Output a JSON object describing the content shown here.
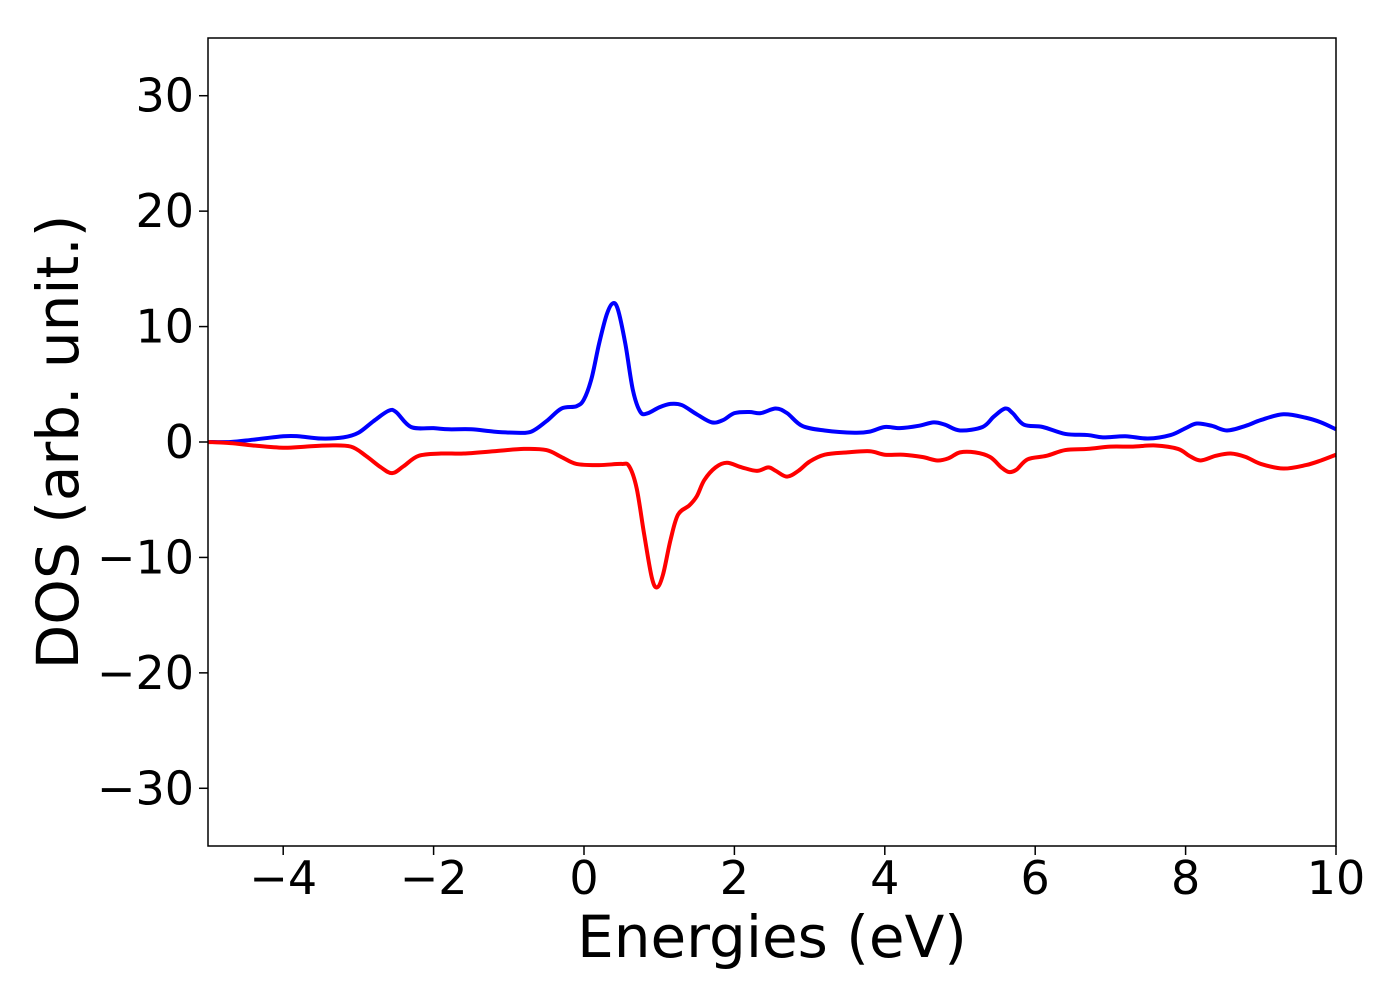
{
  "chart_data": {
    "type": "line",
    "title": "",
    "xlabel": "Energies (eV)",
    "ylabel": "DOS (arb. unit.)",
    "xlim": [
      -5,
      10
    ],
    "ylim": [
      -35,
      35
    ],
    "grid": false,
    "legend": "none",
    "x_ticks": [
      {
        "value": -4,
        "label": "−4"
      },
      {
        "value": -2,
        "label": "−2"
      },
      {
        "value": 0,
        "label": "0"
      },
      {
        "value": 2,
        "label": "2"
      },
      {
        "value": 4,
        "label": "4"
      },
      {
        "value": 6,
        "label": "6"
      },
      {
        "value": 8,
        "label": "8"
      },
      {
        "value": 10,
        "label": "10"
      }
    ],
    "y_ticks": [
      {
        "value": -30,
        "label": "−30"
      },
      {
        "value": -20,
        "label": "−20"
      },
      {
        "value": -10,
        "label": "−10"
      },
      {
        "value": 0,
        "label": "0"
      },
      {
        "value": 10,
        "label": "10"
      },
      {
        "value": 20,
        "label": "20"
      },
      {
        "value": 30,
        "label": "30"
      }
    ],
    "series": [
      {
        "color": "#0000ff",
        "points": [
          [
            -5.0,
            0.0
          ],
          [
            -4.7,
            0.0
          ],
          [
            -4.4,
            0.2
          ],
          [
            -4.0,
            0.5
          ],
          [
            -3.8,
            0.5
          ],
          [
            -3.5,
            0.3
          ],
          [
            -3.2,
            0.4
          ],
          [
            -3.0,
            0.8
          ],
          [
            -2.8,
            1.8
          ],
          [
            -2.6,
            2.7
          ],
          [
            -2.5,
            2.6
          ],
          [
            -2.3,
            1.3
          ],
          [
            -2.0,
            1.2
          ],
          [
            -1.8,
            1.1
          ],
          [
            -1.5,
            1.1
          ],
          [
            -1.2,
            0.9
          ],
          [
            -0.9,
            0.8
          ],
          [
            -0.7,
            0.9
          ],
          [
            -0.5,
            1.8
          ],
          [
            -0.3,
            2.9
          ],
          [
            -0.1,
            3.1
          ],
          [
            0.0,
            3.7
          ],
          [
            0.1,
            5.5
          ],
          [
            0.2,
            8.5
          ],
          [
            0.3,
            11.0
          ],
          [
            0.38,
            12.0
          ],
          [
            0.45,
            11.5
          ],
          [
            0.55,
            8.5
          ],
          [
            0.65,
            4.5
          ],
          [
            0.75,
            2.6
          ],
          [
            0.85,
            2.5
          ],
          [
            1.0,
            3.0
          ],
          [
            1.15,
            3.3
          ],
          [
            1.3,
            3.2
          ],
          [
            1.5,
            2.4
          ],
          [
            1.7,
            1.7
          ],
          [
            1.85,
            1.9
          ],
          [
            2.0,
            2.5
          ],
          [
            2.2,
            2.6
          ],
          [
            2.35,
            2.5
          ],
          [
            2.55,
            2.9
          ],
          [
            2.7,
            2.5
          ],
          [
            2.9,
            1.4
          ],
          [
            3.2,
            1.0
          ],
          [
            3.6,
            0.8
          ],
          [
            3.8,
            0.9
          ],
          [
            4.0,
            1.3
          ],
          [
            4.2,
            1.2
          ],
          [
            4.45,
            1.4
          ],
          [
            4.65,
            1.7
          ],
          [
            4.8,
            1.5
          ],
          [
            5.0,
            1.0
          ],
          [
            5.3,
            1.3
          ],
          [
            5.45,
            2.2
          ],
          [
            5.6,
            2.9
          ],
          [
            5.7,
            2.5
          ],
          [
            5.85,
            1.5
          ],
          [
            6.1,
            1.3
          ],
          [
            6.4,
            0.7
          ],
          [
            6.7,
            0.6
          ],
          [
            6.9,
            0.4
          ],
          [
            7.2,
            0.5
          ],
          [
            7.5,
            0.3
          ],
          [
            7.8,
            0.6
          ],
          [
            8.0,
            1.2
          ],
          [
            8.15,
            1.6
          ],
          [
            8.35,
            1.4
          ],
          [
            8.55,
            1.0
          ],
          [
            8.8,
            1.4
          ],
          [
            9.0,
            1.9
          ],
          [
            9.3,
            2.4
          ],
          [
            9.6,
            2.1
          ],
          [
            9.8,
            1.7
          ],
          [
            10.0,
            1.1
          ]
        ]
      },
      {
        "color": "#ff0000",
        "points": [
          [
            -5.0,
            0.0
          ],
          [
            -4.7,
            -0.1
          ],
          [
            -4.4,
            -0.3
          ],
          [
            -4.0,
            -0.5
          ],
          [
            -3.7,
            -0.4
          ],
          [
            -3.4,
            -0.3
          ],
          [
            -3.1,
            -0.4
          ],
          [
            -2.9,
            -1.2
          ],
          [
            -2.7,
            -2.2
          ],
          [
            -2.55,
            -2.7
          ],
          [
            -2.4,
            -2.1
          ],
          [
            -2.2,
            -1.2
          ],
          [
            -1.9,
            -1.0
          ],
          [
            -1.6,
            -1.0
          ],
          [
            -1.2,
            -0.8
          ],
          [
            -0.8,
            -0.6
          ],
          [
            -0.5,
            -0.7
          ],
          [
            -0.3,
            -1.3
          ],
          [
            -0.1,
            -1.9
          ],
          [
            0.2,
            -2.0
          ],
          [
            0.5,
            -1.9
          ],
          [
            0.6,
            -2.1
          ],
          [
            0.7,
            -4.0
          ],
          [
            0.8,
            -8.0
          ],
          [
            0.9,
            -11.7
          ],
          [
            0.97,
            -12.6
          ],
          [
            1.05,
            -11.5
          ],
          [
            1.15,
            -8.5
          ],
          [
            1.25,
            -6.3
          ],
          [
            1.4,
            -5.5
          ],
          [
            1.5,
            -4.7
          ],
          [
            1.6,
            -3.3
          ],
          [
            1.75,
            -2.2
          ],
          [
            1.9,
            -1.8
          ],
          [
            2.1,
            -2.2
          ],
          [
            2.3,
            -2.5
          ],
          [
            2.45,
            -2.2
          ],
          [
            2.55,
            -2.5
          ],
          [
            2.7,
            -3.0
          ],
          [
            2.85,
            -2.5
          ],
          [
            3.0,
            -1.7
          ],
          [
            3.2,
            -1.1
          ],
          [
            3.5,
            -0.9
          ],
          [
            3.8,
            -0.8
          ],
          [
            4.0,
            -1.1
          ],
          [
            4.25,
            -1.1
          ],
          [
            4.5,
            -1.3
          ],
          [
            4.7,
            -1.6
          ],
          [
            4.85,
            -1.4
          ],
          [
            5.0,
            -0.9
          ],
          [
            5.2,
            -0.9
          ],
          [
            5.4,
            -1.3
          ],
          [
            5.55,
            -2.2
          ],
          [
            5.65,
            -2.6
          ],
          [
            5.75,
            -2.4
          ],
          [
            5.9,
            -1.5
          ],
          [
            6.15,
            -1.2
          ],
          [
            6.4,
            -0.7
          ],
          [
            6.7,
            -0.6
          ],
          [
            7.0,
            -0.4
          ],
          [
            7.3,
            -0.4
          ],
          [
            7.6,
            -0.3
          ],
          [
            7.9,
            -0.6
          ],
          [
            8.05,
            -1.2
          ],
          [
            8.2,
            -1.6
          ],
          [
            8.4,
            -1.2
          ],
          [
            8.6,
            -1.0
          ],
          [
            8.8,
            -1.3
          ],
          [
            9.0,
            -1.9
          ],
          [
            9.3,
            -2.3
          ],
          [
            9.6,
            -2.0
          ],
          [
            9.8,
            -1.6
          ],
          [
            10.0,
            -1.1
          ]
        ]
      }
    ]
  }
}
